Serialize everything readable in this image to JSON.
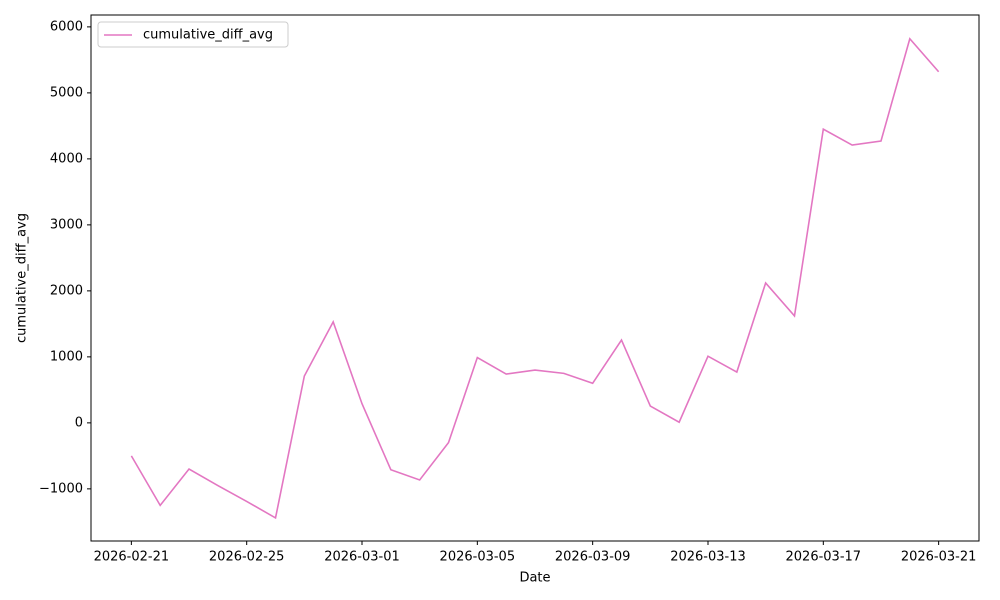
{
  "chart_data": {
    "type": "line",
    "x": [
      "2026-02-21",
      "2026-02-22",
      "2026-02-23",
      "2026-02-24",
      "2026-02-25",
      "2026-02-26",
      "2026-02-27",
      "2026-02-28",
      "2026-03-01",
      "2026-03-02",
      "2026-03-03",
      "2026-03-04",
      "2026-03-05",
      "2026-03-06",
      "2026-03-07",
      "2026-03-08",
      "2026-03-09",
      "2026-03-10",
      "2026-03-11",
      "2026-03-12",
      "2026-03-13",
      "2026-03-14",
      "2026-03-15",
      "2026-03-16",
      "2026-03-17",
      "2026-03-18",
      "2026-03-19",
      "2026-03-20",
      "2026-03-21"
    ],
    "series": [
      {
        "name": "cumulative_diff_avg",
        "color": "#e377c2",
        "values": [
          -500,
          -1250,
          -700,
          -950,
          -1190,
          -1440,
          710,
          1530,
          290,
          -710,
          -865,
          -300,
          990,
          740,
          800,
          750,
          600,
          1255,
          255,
          10,
          1010,
          770,
          2120,
          1620,
          4450,
          4210,
          4270,
          5820,
          5320
        ]
      }
    ],
    "xlabel": "Date",
    "ylabel": "cumulative_diff_avg",
    "xlim": [
      "2026-02-19T14:24",
      "2026-03-22T09:36"
    ],
    "xticks": [
      "2026-02-21",
      "2026-02-25",
      "2026-03-01",
      "2026-03-05",
      "2026-03-09",
      "2026-03-13",
      "2026-03-17",
      "2026-03-21"
    ],
    "ylim": [
      -1790,
      6180
    ],
    "yticks": [
      {
        "value": -1000,
        "label": "−1000"
      },
      0,
      1000,
      2000,
      3000,
      4000,
      5000,
      6000
    ],
    "grid": false,
    "legend": "upper left"
  }
}
